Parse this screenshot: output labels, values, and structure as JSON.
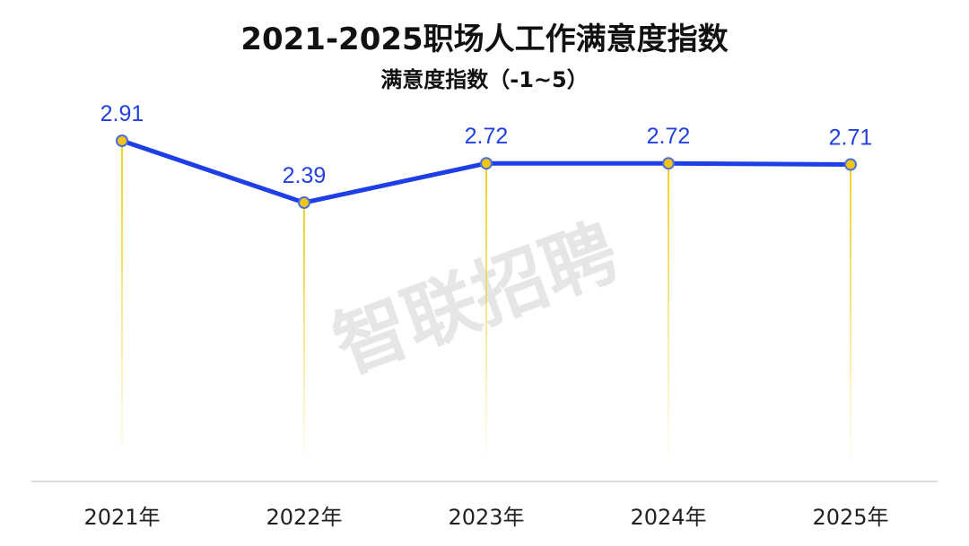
{
  "chart_data": {
    "type": "line",
    "title": "2021-2025职场人工作满意度指数",
    "subtitle": "满意度指数（-1~5）",
    "categories": [
      "2021年",
      "2022年",
      "2023年",
      "2024年",
      "2025年"
    ],
    "series": [
      {
        "values": [
          2.91,
          2.39,
          2.72,
          2.72,
          2.71
        ]
      }
    ],
    "data_labels": [
      "2.91",
      "2.39",
      "2.72",
      "2.72",
      "2.71"
    ],
    "ylim": [
      -1,
      5
    ],
    "grid": false,
    "legend": "none",
    "xlabel": "",
    "ylabel": ""
  },
  "watermark": "智联招聘",
  "colors": {
    "line": "#1f3fe6",
    "label": "#2340e0",
    "marker_fill": "#f2c418",
    "marker_stroke": "#4a6fd8",
    "drop_line": "#f0d020",
    "axis": "#d9d9d9",
    "text": "#111111"
  }
}
